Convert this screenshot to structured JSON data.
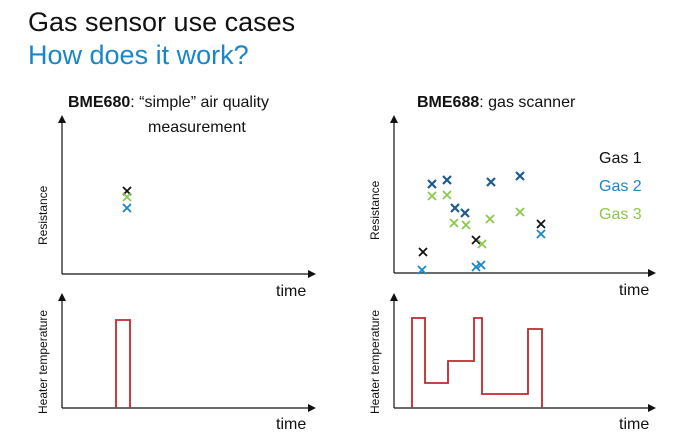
{
  "header": {
    "title": "Gas sensor use cases",
    "subtitle": "How does it work?"
  },
  "left_panel": {
    "title_bold": "BME680",
    "title_rest": ": “simple” air quality",
    "title_line2": "measurement",
    "top_chart": {
      "ylabel": "Resistance",
      "xlabel": "time"
    },
    "bottom_chart": {
      "ylabel": "Heater temperature",
      "xlabel": "time"
    }
  },
  "right_panel": {
    "title_bold": "BME688",
    "title_rest": ": gas scanner",
    "top_chart": {
      "ylabel": "Resistance",
      "xlabel": "time"
    },
    "bottom_chart": {
      "ylabel": "Heater temperature",
      "xlabel": "time"
    },
    "legend": [
      {
        "label": "Gas 1",
        "color": "#111111"
      },
      {
        "label": "Gas 2",
        "color": "#1a86c8"
      },
      {
        "label": "Gas 3",
        "color": "#8cc84b"
      }
    ]
  },
  "colors": {
    "gas1": "#111111",
    "gas2": "#1a86c8",
    "gas3": "#8cc84b",
    "heater": "#c0282e",
    "marker_dark_blue": "#1e5a8c"
  }
}
